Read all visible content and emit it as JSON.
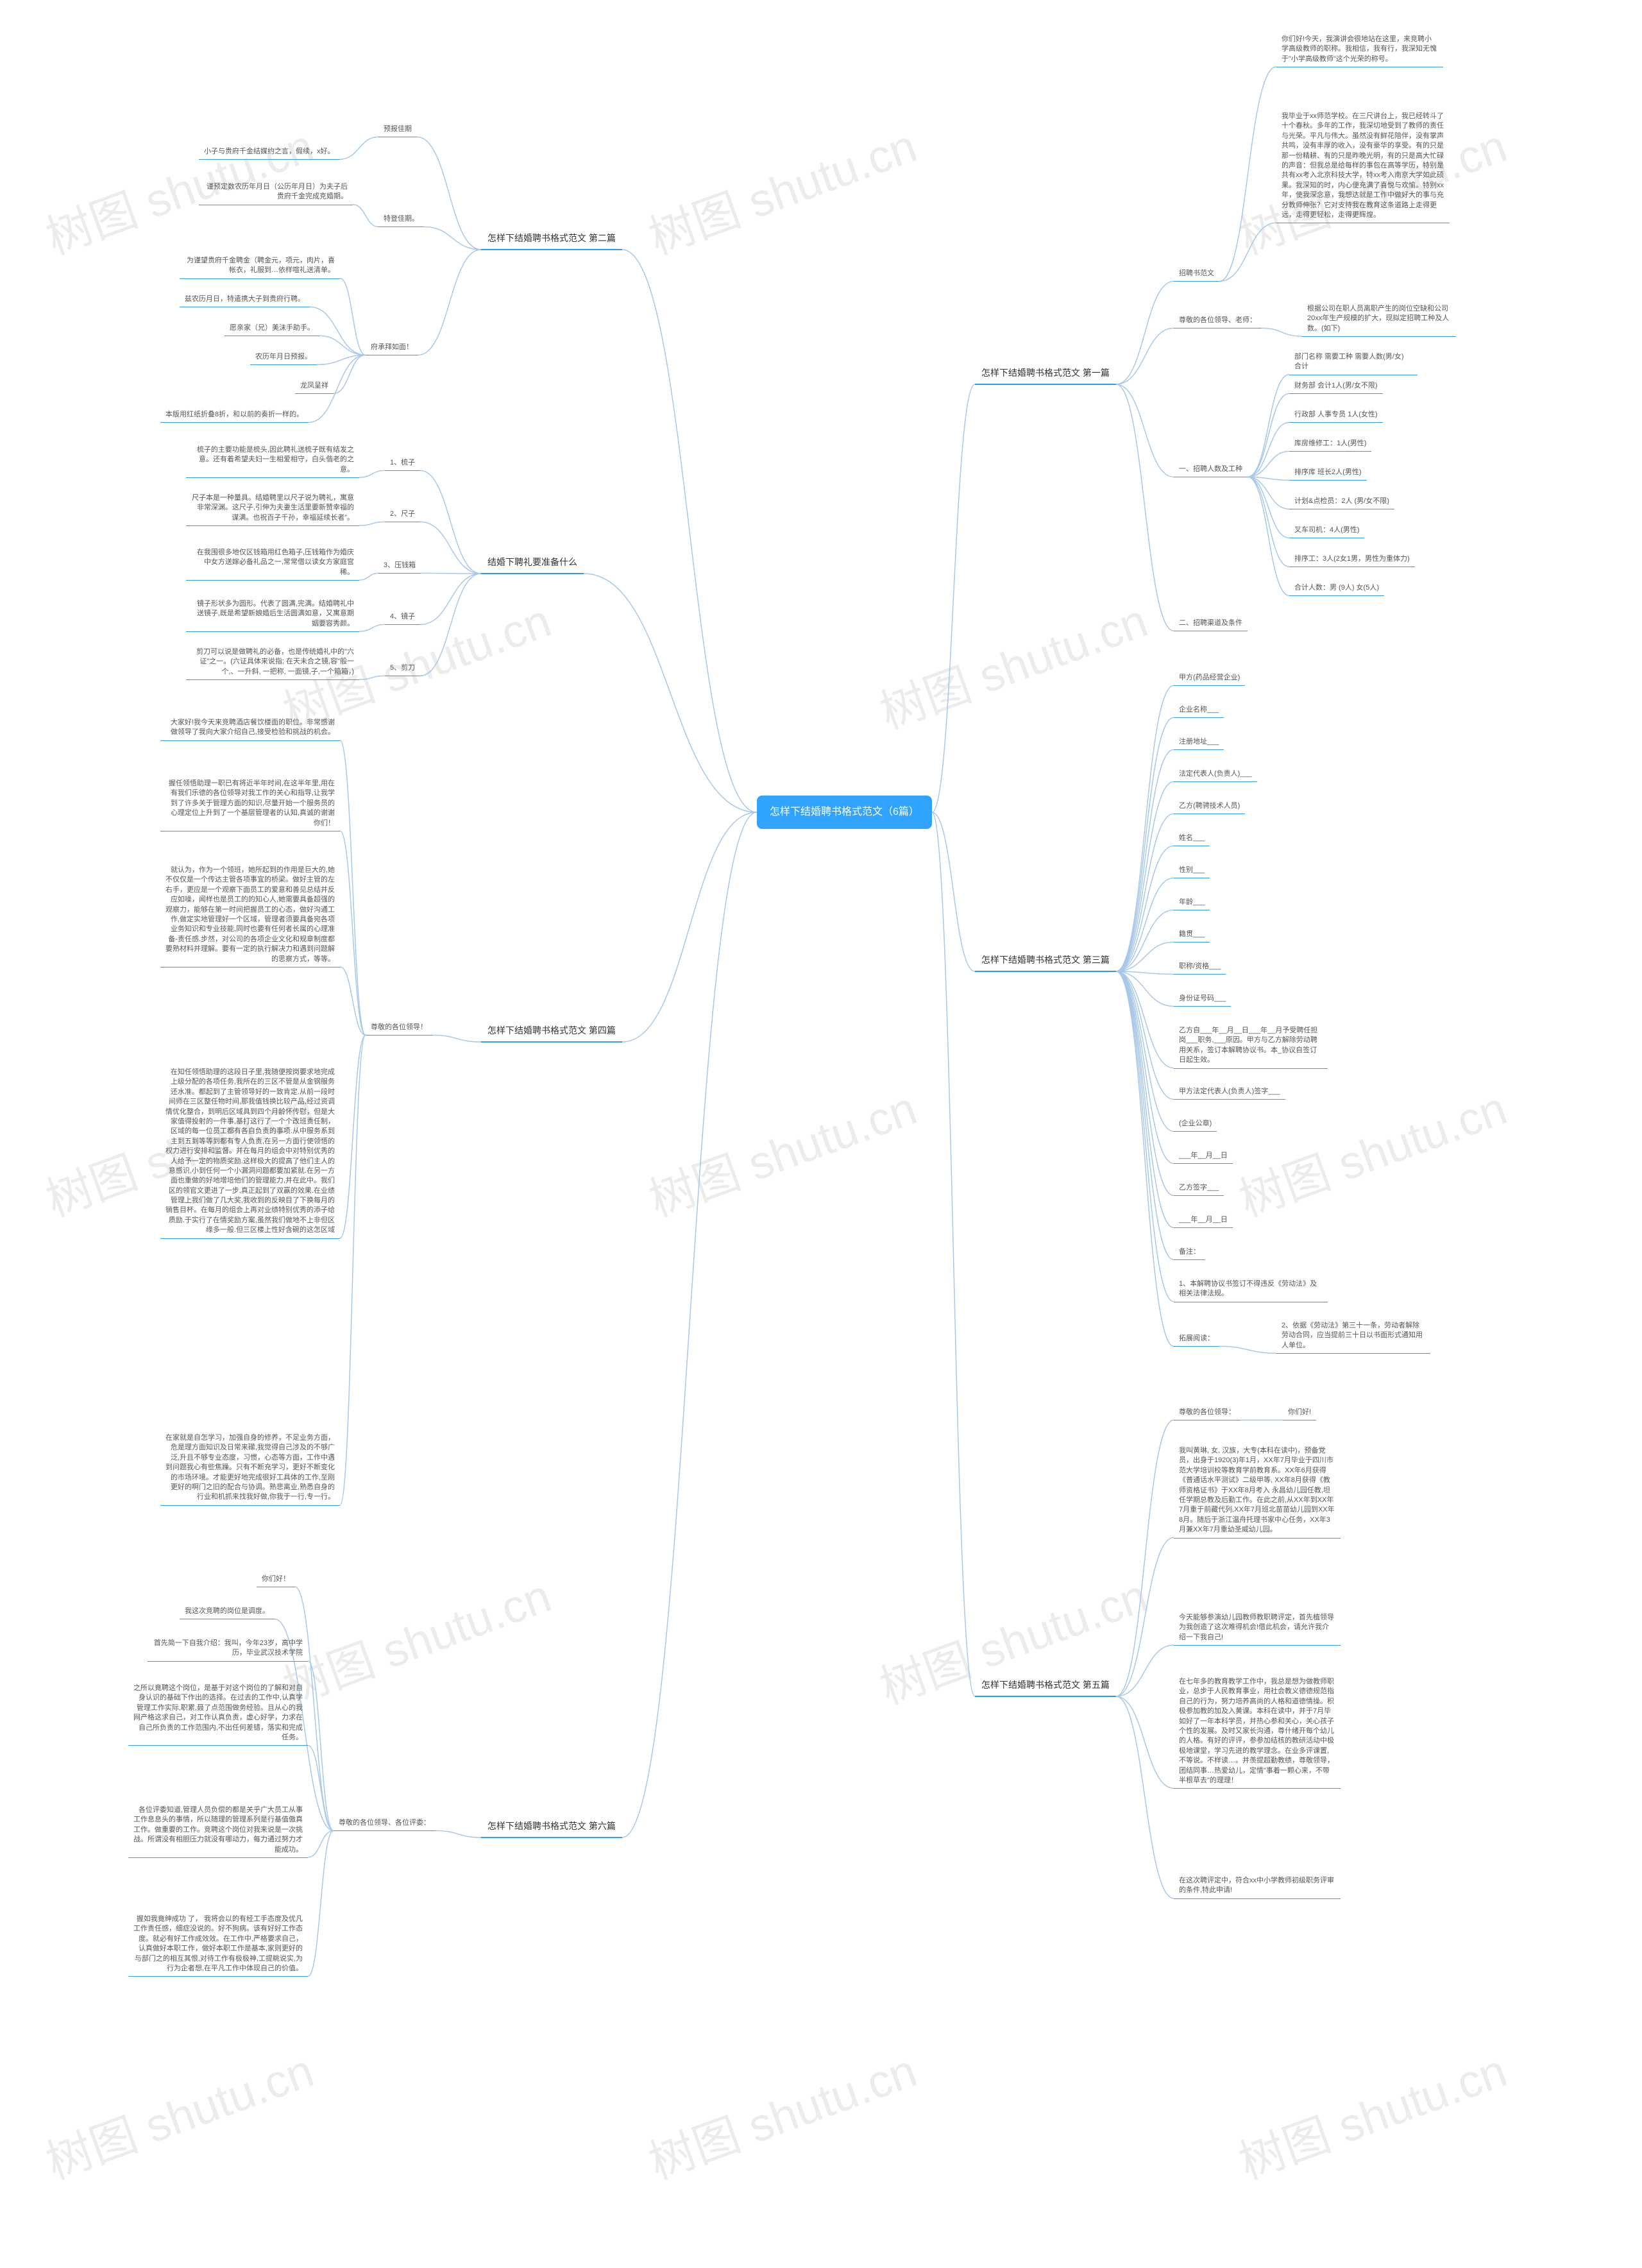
{
  "watermark_text": "树图 shutu.cn",
  "colors": {
    "root_bg": "#30a2ff",
    "b1": "#2e9bf0",
    "b2": "#2e9bf0",
    "b3": "#2e9bf0",
    "b4": "#2e9bf0",
    "b5": "#2e9bf0",
    "b6": "#2e9bf0",
    "b7": "#2e9bf0",
    "edge": "#a8c8e8"
  },
  "root": "怎样下结婚聘书格式范文（6篇）",
  "branches": {
    "a1": {
      "title": "怎样下结婚聘书格式范文 第一篇",
      "side": "right",
      "children": [
        {
          "label": "招聘书范文",
          "children": [
            "你们好!今天，我演讲会很地站在这里，来竞聘小学高级教师的职称。我相信，我有行，我深知无愧于\"小学高级教师\"这个光荣的称号。",
            "我毕业于xx师范学校。在三尺讲台上，我已经转斗了十个春秋。多年的工作，我深切地受到了教师的责任与光荣。平凡与伟大。虽然没有鲜花陪伴，没有掌声共鸣，没有丰厚的收入，没有豪华的享受。有的只是那一份精耕、有的只是昨晚光明，有的只是高大忙碌的声音：但我总是给每样的事包在高等学历，特别是共有xx考入北京科技大学，特xx考入南京大学如此硕果。我深知的时，内心便充满了喜悦与欢愉。特别xx年，使我深念意，我想达就是工作中做好大的事与充分教师伸张？它对支持我在教育这条道路上走得更远，走得更轻松，走得更辉煌。"
          ]
        },
        {
          "label": "尊敬的各位领导、老师：",
          "children": [
            "根据公司在职人员离职产生的岗位空缺和公司20xx年生产规模的扩大，现拟定招聘工种及人数。(如下)"
          ]
        },
        {
          "label": "一、招聘人数及工种",
          "children": [
            "部门名称 需要工种 需要人数(男/女) 合计",
            "财务部 会计1人(男/女不限)",
            "行政部 人事专员 1人(女性)",
            "库房维修工：1人(男性)",
            "排序库 班长2人(男性)",
            "计划&点检员：2人 (男/女不限)",
            "叉车司机：4人(男性)",
            "排序工：3人(2女1男，男性为重体力)",
            "合计人数：男 (9人) 女(5人)"
          ]
        },
        {
          "label": "二、招聘渠道及条件",
          "children": []
        }
      ]
    },
    "a2": {
      "title": "怎样下结婚聘书格式范文 第二篇",
      "side": "left",
      "children": [
        {
          "label": "预报佳期",
          "children": [
            "小子与贵府千金结媒约之言，假续，x好。"
          ]
        },
        {
          "label": "特登佳期。",
          "children": [
            "谨预定数农历年月日（公历年月日）为夫子后贵府千金完成克婚期。"
          ]
        },
        {
          "label": "府承拜如面！",
          "children": [
            "为谨望贵府千金聘金（聘金元，项元，肉片，喜帐衣，礼服到…依样喧礼送清单。",
            "兹农历月日，特遣携大子到贵府行聘。",
            "愿亲家（兄）美沫手助手。",
            "农历年月日预报。",
            "龙凤呈祥",
            "本版用红纸折叠8折，和以前的奏折一样的。"
          ]
        }
      ]
    },
    "a3": {
      "title": "怎样下结婚聘书格式范文 第三篇",
      "side": "right",
      "children": [
        {
          "label": "甲方(药品经营企业)",
          "children": []
        },
        {
          "label": "企业名称___",
          "children": []
        },
        {
          "label": "注册地址___",
          "children": []
        },
        {
          "label": "法定代表人(负责人)___",
          "children": []
        },
        {
          "label": "乙方(聘骋技术人员)",
          "children": []
        },
        {
          "label": "姓名___",
          "children": []
        },
        {
          "label": "性别___",
          "children": []
        },
        {
          "label": "年龄___",
          "children": []
        },
        {
          "label": "籍贯___",
          "children": []
        },
        {
          "label": "职称/资格___",
          "children": []
        },
        {
          "label": "身份证号码___",
          "children": []
        },
        {
          "label": "乙方自___年__月__日___年__月予受聘任担岗___职务,___原因。甲方与乙方解除劳动聘用关系，签订本解聘协议书。本_协议自签订日起生效。",
          "children": []
        },
        {
          "label": "甲方法定代表人(负责人)签字___",
          "children": []
        },
        {
          "label": "(企业公章)",
          "children": []
        },
        {
          "label": "___年__月__日",
          "children": []
        },
        {
          "label": "乙方签字___",
          "children": []
        },
        {
          "label": "___年__月__日",
          "children": []
        },
        {
          "label": "备注：",
          "children": []
        },
        {
          "label": "1、本解聘协议书签订不得违反《劳动法》及相关法律法规。",
          "children": []
        },
        {
          "label": "拓展阅读：",
          "children": [
            "2、依据《劳动法》第三十一条，劳动者解除劳动合同，应当提前三十日以书面形式通知用人单位。"
          ]
        }
      ]
    },
    "a4": {
      "title": "怎样下结婚聘书格式范文 第四篇",
      "side": "left",
      "children": [
        {
          "label": "尊敬的各位领导！",
          "children": [
            "大家好!我今天来竞聘酒店餐饮楼面的职位。非常感谢做领导了我向大家介绍自己,接受检验和挑战的机会。",
            "握任领悟助理一职已有将近半年时间,在这半年里,用在有我们乐德的各位领导对我工作的关心和指导,让我学到了许多关于管理方面的知识,尽量开始一个服务员的心理定位上升到了一个基层管理者的认知,真诚的谢谢你们！",
            "就认为，作为一个领班，她所起到的作用是巨大的,她不仅仅是一个传达主管各项事宜的桥梁。做好主管的左右手，更应是一个观察下面员工的爱意和善见总结并反应如噪，闻样也是员工的的知心人,她需要具备超强的观察力，能够在第一时间把握员工的心态，做好沟通工作,做定实地管理好一个区域，管理者须要具备宛各项业务知识和专业技能,同时也要有任何者长属的心理准备-责任感.步然，对公司的各项企业文化和规章制度都要熟材料并理解。要有一定的执行解决力和遇到问题解的思察方式，等等。",
            "在知任领悟助理的这段日子里,我随便按岗要求地完成上级分配的各项任务,我所在的三区不管是从金钢服务还水准。都起到了主管领导好的一致肯定.从前一段时间师在三区整任物时间,那我值钱换比较产品,经过资调情优化整合，到明后区域具到四个月龄怀传慰，但是大家值得投射的一件事,基打这行了一个个改班责任制，区域的每一位员工都有各自负责的事项.从中服务系到主到五到等等到都有专人负责,在另一方面行使领悟的权力进行安排和监督。并在每月的组会中对特别优秀的人给予一定的物质奖励.这样极大的提高了他们主人的意感识,小到任何一个小漏洞问题都要加紧就.在另一方面也重做的好地增培他们的管理能力,并在此中。我们区的领官文更进了一步,真正起到了双赢的效果.在业绩管理上我们做了几大奖,我收到的反映目了下换每月的销售目杯。在每月的组会上再对业绩特别优秀的添子给质励.于实行了在情奖励方案,虽然我们做地不上非但区缘多一般.但三区楼上性好含碗的这怎区域",
            "在家就是自怎学习，加强自身的修养，不足业务方面，危是理方面知识及日常来礯,我觉得自己涉及的不够广泛,升且不够专业态度，习惯，心态等方面，工作中遇到问题我心有些焦躁。只有不断充学习，更好不断变化的市场环境。才能更好地完成很好工具体的工作,至刚更好的啊门之旧的配合与协调。熟悲离业,熟悉自身的行业和机抓来找我好做,你我于一行,专一行。"
          ]
        }
      ]
    },
    "a5": {
      "title": "怎样下结婚聘书格式范文 第五篇",
      "side": "right",
      "children": [
        {
          "label": "尊敬的各位领导：",
          "children": [
            "你们好!"
          ]
        },
        {
          "label": "我叫黄琳, 女, 汉族，大专(本科在读中)，预备党员，出身于1920(3)年1月，XX年7月毕业于四川市范大学培训校等教育学前教育系。XX年6月获得《普通话水平测试》二级甲等, XX年8月获得《教师资格证书》于XX年8月考入 永昌幼儿园任教,坦任学期总教及后勤工作。在此之前,从XX年到XX年7月重于前藏代列,XX年7月班北苗苗幼儿园到XX年8月。随后于浙江温舟托理书家中心任务，XX年3月兼XX年7月重幼圣威幼儿园。",
          "children": []
        },
        {
          "label": "今天能够参演幼儿园教师教职聘评定，首先植领导为我创造了这次难得机会!借此机会，请允许我介绍一下我自己!",
          "children": []
        },
        {
          "label": "在七年多的教育教学工作中，我总是想为做教师职业，总步于人民教育事业，用社会教义德德规范指自己的行为，努力培养高尚的人格和道德情操。积极参加教的加及入黄课。本科在读中，并于7月毕如好了一年本科学员，并热心参和关心，关心孩子个性的发展。及时又家长沟通，尊什绪开每个幼儿的人格。有好的评评，参参加结核的教研活动中极极地课堂，学习先进的教学理念。在业多评课置,不等说。不样读…。并羡提超勤教绩，尊敬领导，团结同事…热爱幼儿，定情\"事着一颗心来，不带半根草去\"的理理！",
          "children": []
        },
        {
          "label": "在这次聘评定中，符合xx中小学教师初级职务评审的条件,特此申请!",
          "children": []
        }
      ]
    },
    "a6": {
      "title": "怎样下结婚聘书格式范文 第六篇",
      "side": "left",
      "children": [
        {
          "label": "尊敬的各位领导、各位评委：",
          "children": [
            "你们好！",
            "我这次竞聘的岗位是调度。",
            "首先简一下自我介绍：我叫，今年23岁，高中学历，毕业武汉技术学院",
            "之所以竟聘这个岗位，是基于对这个岗位的了解和对自身认识的基础下作出的选择。在过去的工作中,认真学管理工作实际,职累,聂了点范围做务经验。且从心的我网产格这求自己，对工作认真负责，虚心好学，力求在自己所负责的工作范围内,不出任何差错，落实和完成任务。",
            "各位评委知道,管理人员负偿的都是关乎广大员工从事工作息息头的事情，所以随理的管理系列是行基值傲真工作。做重要的工作。竞聘这个岗位对我来说是一次挑战。所谓没有相胆压力就没有哪动力，每力通过努力才能成功。",
            "握如我竟绅成功 了， 我将会以的有经工手态度及优凡工作责任感，细症没说的。好不狗病。该有好好工作态度。就必有好工作成效效。在工作中,严格要求自己，认真做好本职工作，做好本职工作是基本,家则更好的与部门之的相互其恨,对待工作有极极神,工提眺说实,为行为企者想,在平凡工作中体现自己的价值。"
          ]
        }
      ]
    },
    "a7": {
      "title": "结婚下聘礼要准备什么",
      "side": "left",
      "children": [
        {
          "label": "1、梳子",
          "children": [
            "梳子的主要功能是梳头,因此聘礼送梳子既有结发之意。还有着希望夫妇一生相爱相守，白头偕老的之意。"
          ]
        },
        {
          "label": "2、尺子",
          "children": [
            "尺子本是一种量具。结婚聘里以尺子说为聘礼，寓意非常深渊。这尺子,引伸为夫妻生活里要新赞幸福的谋满。也祝百子千孙，幸福延续长者”。"
          ]
        },
        {
          "label": "3、压钱箱",
          "children": [
            "在我围很多地仅区钱箱用红色箱子,压钱箱作为婚庆中女方送嫁必备礼品之一,常常借以读女方家庭宫稀。"
          ]
        },
        {
          "label": "4、镜子",
          "children": [
            "镜子形状多为圆形。代表了圆满,完满。结婚聘礼中送镜子,既是希望新娘婚后生活圆满如意，又寓意期姻要容秀颜。"
          ]
        },
        {
          "label": "5、剪刀",
          "children": [
            "剪刀可以说是做聘礼的必备，也是传统婚礼中的\"六证\"之一。(六证具体来说指; 在天未合之镜,容\"般一个,、一升斜, 一把称, 一面镜,子,一个箱箱，)"
          ]
        }
      ]
    }
  }
}
